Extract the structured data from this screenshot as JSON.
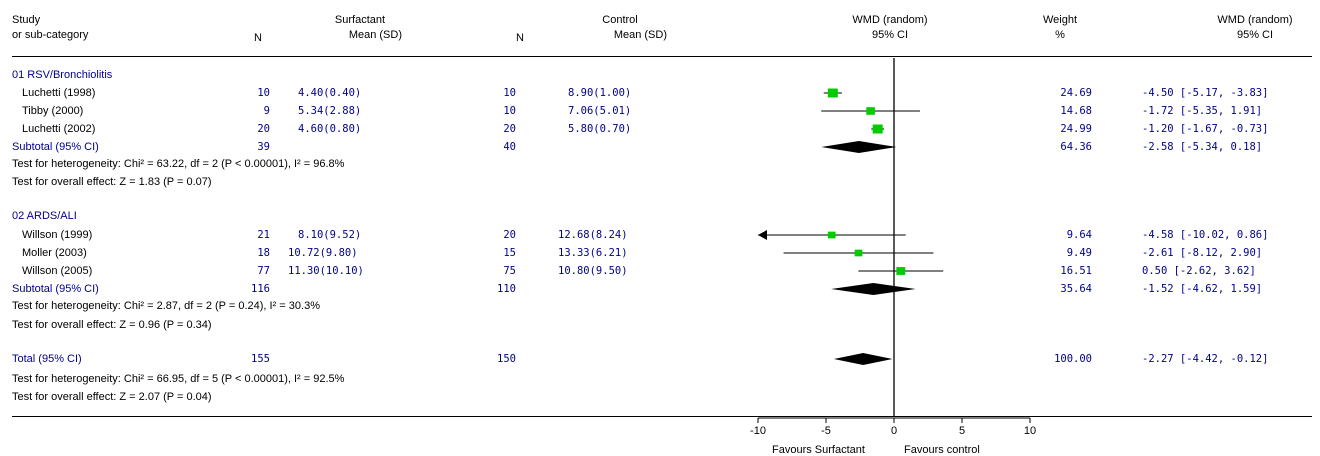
{
  "header": {
    "study": "Study",
    "subcategory": "or sub-category",
    "surfactant": "Surfactant",
    "control": "Control",
    "n": "N",
    "mean_sd": "Mean (SD)",
    "wmd": "WMD (random)",
    "ci": "95% CI",
    "weight": "Weight",
    "weight_pct": "%"
  },
  "groups": [
    {
      "label": "01 RSV/Bronchiolitis",
      "studies": [
        {
          "name": "Luchetti (1998)",
          "n1": "10",
          "msd1": "4.40(0.40)",
          "n2": "10",
          "msd2": "8.90(1.00)",
          "weight": "24.69",
          "ci_text": "-4.50 [-5.17, -3.83]"
        },
        {
          "name": "Tibby (2000)",
          "n1": "9",
          "msd1": "5.34(2.88)",
          "n2": "10",
          "msd2": "7.06(5.01)",
          "weight": "14.68",
          "ci_text": "-1.72 [-5.35, 1.91]"
        },
        {
          "name": "Luchetti (2002)",
          "n1": "20",
          "msd1": "4.60(0.80)",
          "n2": "20",
          "msd2": "5.80(0.70)",
          "weight": "24.99",
          "ci_text": "-1.20 [-1.67, -0.73]"
        }
      ],
      "subtotal": {
        "label": "Subtotal (95% CI)",
        "n1": "39",
        "n2": "40",
        "weight": "64.36",
        "ci_text": "-2.58 [-5.34, 0.18]"
      },
      "heterogeneity": "Test for heterogeneity: Chi² = 63.22, df = 2 (P < 0.00001), I² = 96.8%",
      "overall_effect": "Test for overall effect: Z = 1.83 (P = 0.07)"
    },
    {
      "label": "02 ARDS/ALI",
      "studies": [
        {
          "name": "Willson (1999)",
          "n1": "21",
          "msd1": "8.10(9.52)",
          "n2": "20",
          "msd2": "12.68(8.24)",
          "weight": "9.64",
          "ci_text": "-4.58 [-10.02, 0.86]"
        },
        {
          "name": "Moller (2003)",
          "n1": "18",
          "msd1": "10.72(9.80)",
          "n2": "15",
          "msd2": "13.33(6.21)",
          "weight": "9.49",
          "ci_text": "-2.61 [-8.12, 2.90]"
        },
        {
          "name": "Willson (2005)",
          "n1": "77",
          "msd1": "11.30(10.10)",
          "n2": "75",
          "msd2": "10.80(9.50)",
          "weight": "16.51",
          "ci_text": "0.50 [-2.62, 3.62]"
        }
      ],
      "subtotal": {
        "label": "Subtotal (95% CI)",
        "n1": "116",
        "n2": "110",
        "weight": "35.64",
        "ci_text": "-1.52 [-4.62, 1.59]"
      },
      "heterogeneity": "Test for heterogeneity: Chi² = 2.87, df = 2 (P = 0.24), I² = 30.3%",
      "overall_effect": "Test for overall effect: Z = 0.96 (P = 0.34)"
    }
  ],
  "total": {
    "label": "Total (95% CI)",
    "n1": "155",
    "n2": "150",
    "weight": "100.00",
    "ci_text": "-2.27 [-4.42, -0.12]",
    "heterogeneity": "Test for heterogeneity: Chi² = 66.95, df = 5 (P < 0.00001), I² = 92.5%",
    "overall_effect": "Test for overall effect: Z = 2.07 (P = 0.04)"
  },
  "chart_data": {
    "type": "forest",
    "xlim": [
      -10,
      10
    ],
    "ticks": [
      -10,
      -5,
      0,
      5,
      10
    ],
    "favours_left": "Favours Surfactant",
    "favours_right": "Favours control",
    "colors": {
      "point": "#00cc00",
      "ink": "#000000",
      "text": "#00008b"
    },
    "studies": [
      {
        "name": "Luchetti (1998)",
        "est": -4.5,
        "lo": -5.17,
        "hi": -3.83,
        "weight": 24.69,
        "group": 0
      },
      {
        "name": "Tibby (2000)",
        "est": -1.72,
        "lo": -5.35,
        "hi": 1.91,
        "weight": 14.68,
        "group": 0
      },
      {
        "name": "Luchetti (2002)",
        "est": -1.2,
        "lo": -1.67,
        "hi": -0.73,
        "weight": 24.99,
        "group": 0
      },
      {
        "name": "Willson (1999)",
        "est": -4.58,
        "lo": -10.02,
        "hi": 0.86,
        "weight": 9.64,
        "group": 1
      },
      {
        "name": "Moller (2003)",
        "est": -2.61,
        "lo": -8.12,
        "hi": 2.9,
        "weight": 9.49,
        "group": 1
      },
      {
        "name": "Willson (2005)",
        "est": 0.5,
        "lo": -2.62,
        "hi": 3.62,
        "weight": 16.51,
        "group": 1
      }
    ],
    "pooled": [
      {
        "name": "Subtotal (95% CI) 01 RSV/Bronchiolitis",
        "est": -2.58,
        "lo": -5.34,
        "hi": 0.18
      },
      {
        "name": "Subtotal (95% CI) 02 ARDS/ALI",
        "est": -1.52,
        "lo": -4.62,
        "hi": 1.59
      },
      {
        "name": "Total (95% CI)",
        "est": -2.27,
        "lo": -4.42,
        "hi": -0.12
      }
    ]
  }
}
